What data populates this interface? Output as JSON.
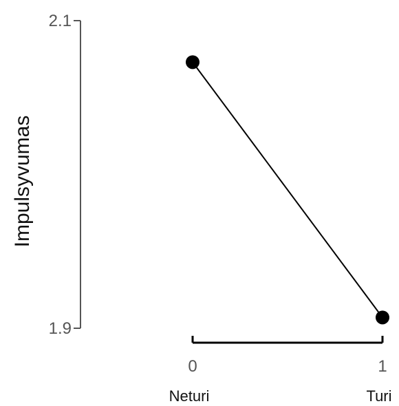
{
  "chart_data": {
    "type": "line",
    "ylabel": "Impulsyvumas",
    "xlabel": "",
    "x": [
      0,
      1
    ],
    "x_tick_labels": [
      "0",
      "1"
    ],
    "x_category_labels": [
      "Neturi",
      "Turi"
    ],
    "xlim": [
      0,
      1
    ],
    "ylim": [
      1.9,
      2.1
    ],
    "y_tick_labels": [
      "2.1",
      "1.9"
    ],
    "y_ticks": [
      2.1,
      1.9
    ],
    "series": [
      {
        "values": [
          2.073,
          1.907
        ]
      }
    ],
    "grid": false,
    "colors": {
      "line": "#000000",
      "axis": "#555555"
    }
  }
}
